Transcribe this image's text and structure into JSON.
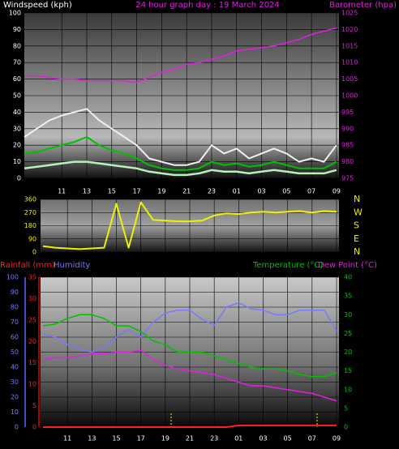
{
  "chart_data": [
    {
      "type": "line",
      "title": "24 hour graph day : 19 March 2024",
      "ylabel": "Windspeed (kph)",
      "x": [
        8,
        9,
        10,
        11,
        12,
        13,
        14,
        15,
        16,
        17,
        18,
        19,
        20,
        21,
        22,
        23,
        24,
        25,
        26,
        27,
        28,
        29,
        30,
        31,
        32,
        33
      ],
      "xlim": [
        8,
        33.2
      ],
      "xticks": [
        11,
        13,
        15,
        17,
        19,
        21,
        23,
        {
          "value": 25,
          "label": "01"
        },
        {
          "value": 27,
          "label": "03"
        },
        {
          "value": 29,
          "label": "05"
        },
        {
          "value": 31,
          "label": "07"
        },
        {
          "value": 33,
          "label": "09"
        }
      ],
      "ylim": [
        0,
        100
      ],
      "yticks": [
        0,
        10,
        20,
        30,
        40,
        50,
        60,
        70,
        80,
        90,
        100
      ],
      "y2lim": [
        975,
        1025
      ],
      "y2ticks": [
        975,
        980,
        985,
        990,
        995,
        1000,
        1005,
        1010,
        1015,
        1020,
        1025
      ],
      "grid": true,
      "series": [
        {
          "color": "#f0f0f0",
          "values": [
            25,
            30,
            35,
            38,
            40,
            42,
            35,
            30,
            25,
            20,
            12,
            10,
            8,
            8,
            10,
            20,
            15,
            18,
            12,
            15,
            18,
            15,
            10,
            12,
            10,
            20
          ]
        },
        {
          "color": "#00c000",
          "values": [
            15,
            16,
            18,
            20,
            22,
            25,
            20,
            17,
            15,
            12,
            8,
            6,
            5,
            5,
            6,
            10,
            8,
            9,
            7,
            8,
            10,
            8,
            6,
            6,
            6,
            10
          ]
        },
        {
          "color": "#b8f0b8",
          "values": [
            6,
            7,
            8,
            9,
            10,
            10,
            9,
            8,
            7,
            6,
            4,
            3,
            2,
            2,
            3,
            5,
            4,
            4,
            3,
            4,
            5,
            4,
            3,
            3,
            3,
            5
          ]
        },
        {
          "name": "Barometer (hpa)",
          "color": "#e020e0",
          "axis": "y2",
          "values": [
            1006,
            1006,
            1005.5,
            1005,
            1005,
            1004.5,
            1004.5,
            1004.5,
            1004.5,
            1004,
            1005.5,
            1007,
            1008,
            1009.5,
            1010,
            1011,
            1012,
            1013.5,
            1014,
            1014.5,
            1015,
            1016,
            1017,
            1018.5,
            1019.5,
            1020.5
          ]
        }
      ]
    },
    {
      "type": "line",
      "x": [
        9,
        10,
        11,
        12,
        13,
        14,
        15,
        16,
        17,
        18,
        19,
        20,
        21,
        22,
        23,
        24,
        25,
        26,
        27,
        28,
        29,
        30,
        31,
        32,
        33
      ],
      "xlim": [
        8.8,
        33.2
      ],
      "xticks": [
        11,
        13,
        15,
        17,
        19,
        21,
        23,
        25,
        27,
        29,
        31,
        33
      ],
      "ylim": [
        0,
        360
      ],
      "yticks": [
        0,
        90,
        180,
        270,
        360
      ],
      "y2lim": [
        0,
        360
      ],
      "y2ticks": [
        {
          "value": 360,
          "label": "N"
        },
        {
          "value": 270,
          "label": "W"
        },
        {
          "value": 180,
          "label": "S"
        },
        {
          "value": 90,
          "label": "E"
        },
        {
          "value": 0,
          "label": "N"
        }
      ],
      "grid": true,
      "series": [
        {
          "color": "#f0f000",
          "values": [
            40,
            30,
            25,
            20,
            25,
            30,
            330,
            30,
            340,
            220,
            215,
            210,
            210,
            215,
            250,
            265,
            260,
            270,
            275,
            270,
            275,
            280,
            270,
            280,
            275
          ]
        }
      ]
    },
    {
      "type": "line",
      "x": [
        9,
        10,
        11,
        12,
        13,
        14,
        15,
        16,
        17,
        18,
        19,
        20,
        21,
        22,
        23,
        24,
        25,
        26,
        27,
        28,
        29,
        30,
        31,
        32,
        33
      ],
      "xlim": [
        8.8,
        33.2
      ],
      "xticks": [
        11,
        13,
        15,
        17,
        19,
        21,
        23,
        {
          "value": 25,
          "label": "01"
        },
        {
          "value": 27,
          "label": "03"
        },
        {
          "value": 29,
          "label": "05"
        },
        {
          "value": 31,
          "label": "07"
        },
        {
          "value": 33,
          "label": "09"
        }
      ],
      "ylim": [
        0,
        100
      ],
      "yticks": [
        0,
        10,
        20,
        30,
        40,
        50,
        60,
        70,
        80,
        90,
        100
      ],
      "y2lim": [
        0,
        40
      ],
      "y2ticks": [
        0,
        5,
        10,
        15,
        20,
        25,
        30,
        35,
        40
      ],
      "y3lim": [
        0,
        35
      ],
      "y3ticks": [
        0,
        5,
        10,
        15,
        20,
        25,
        30,
        35
      ],
      "grid": true,
      "series": [
        {
          "name": "Rainfall (mm)",
          "color": "#ff2020",
          "axis": "y3",
          "values": [
            0,
            0,
            0,
            0,
            0,
            0,
            0,
            0,
            0,
            0,
            0,
            0,
            0,
            0,
            0,
            0,
            0.4,
            0.4,
            0.4,
            0.4,
            0.4,
            0.4,
            0.4,
            0.4,
            0.4
          ]
        },
        {
          "name": "Humidity",
          "color": "#7878ff",
          "values": [
            62,
            60,
            55,
            52,
            50,
            53,
            60,
            65,
            60,
            70,
            76,
            78,
            78,
            72,
            68,
            80,
            83,
            79,
            78,
            75,
            75,
            78,
            78,
            78,
            64
          ]
        },
        {
          "name": "Temperature (°C)",
          "color": "#00c000",
          "axis": "y2",
          "values": [
            27,
            27.5,
            29,
            30,
            30,
            29,
            27,
            27,
            25.5,
            23,
            22,
            20,
            20,
            20,
            19,
            18,
            17,
            16,
            15.5,
            15.5,
            15,
            14,
            13.5,
            13.5,
            14.5
          ]
        },
        {
          "name": "Dew Point (°C)",
          "color": "#e020e0",
          "axis": "y2",
          "values": [
            18,
            18.5,
            18.5,
            19,
            19.5,
            19.5,
            20,
            20,
            20.5,
            18,
            16.5,
            15.5,
            15,
            14.5,
            14,
            13,
            12,
            11,
            11,
            10.5,
            10,
            9.5,
            9,
            8,
            7
          ]
        }
      ]
    }
  ]
}
